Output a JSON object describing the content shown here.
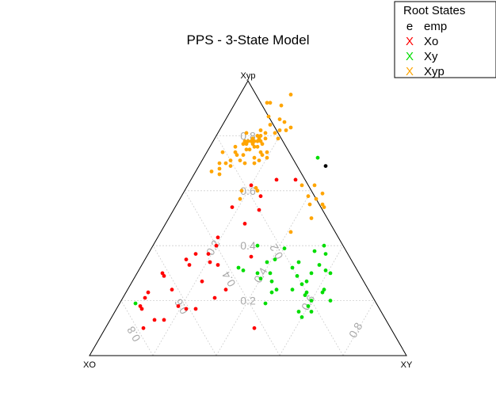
{
  "chart_data": {
    "type": "scatter",
    "subtype": "ternary",
    "title": "PPS - 3-State Model",
    "vertices": {
      "left": "XO",
      "top": "Xyp",
      "right": "XY"
    },
    "ticks": {
      "top_axis": [
        "0.2",
        "0.4",
        "0.6",
        "0.8"
      ],
      "left_axis": [
        "0.2",
        "0.4",
        "0.6",
        "0.8"
      ],
      "right_axis": [
        "0.2",
        "0.4",
        "0.6",
        "0.8"
      ]
    },
    "grid": true,
    "legend": {
      "title": "Root States",
      "placement": "top-right",
      "entries": [
        {
          "symbol": "e",
          "label": "emp",
          "color": "#000000"
        },
        {
          "symbol": "X",
          "label": "Xo",
          "color": "#ff0000"
        },
        {
          "symbol": "X",
          "label": "Xy",
          "color": "#00dd00"
        },
        {
          "symbol": "X",
          "label": "Xyp",
          "color": "#ffa500"
        }
      ]
    },
    "series": [
      {
        "name": "emp",
        "color": "#000000",
        "points": [
          [
            0.4,
            0.69
          ]
        ]
      },
      {
        "name": "Xo",
        "color": "#ff0000",
        "points": [
          [
            0.27,
            0.64
          ],
          [
            0.33,
            0.64
          ],
          [
            0.2,
            0.62
          ],
          [
            0.25,
            0.58
          ],
          [
            0.18,
            0.54
          ],
          [
            0.27,
            0.53
          ],
          [
            0.25,
            0.48
          ],
          [
            0.19,
            0.43
          ],
          [
            0.15,
            0.37
          ],
          [
            0.13,
            0.35
          ],
          [
            0.19,
            0.37
          ],
          [
            0.15,
            0.33
          ],
          [
            0.08,
            0.3
          ],
          [
            0.09,
            0.29
          ],
          [
            0.21,
            0.34
          ],
          [
            0.24,
            0.33
          ],
          [
            0.14,
            0.24
          ],
          [
            0.22,
            0.27
          ],
          [
            0.31,
            0.24
          ],
          [
            0.29,
            0.21
          ],
          [
            0.19,
            0.18
          ],
          [
            0.07,
            0.21
          ],
          [
            0.07,
            0.23
          ],
          [
            0.25,
            0.17
          ],
          [
            0.22,
            0.17
          ],
          [
            0.17,
            0.13
          ],
          [
            0.08,
            0.17
          ],
          [
            0.07,
            0.18
          ],
          [
            0.12,
            0.1
          ],
          [
            0.14,
            0.13
          ],
          [
            0.47,
            0.1
          ],
          [
            0.2,
            0.4
          ],
          [
            0.33,
            0.36
          ]
        ]
      },
      {
        "name": "Xy",
        "color": "#00dd00",
        "points": [
          [
            0.33,
            0.4
          ],
          [
            0.42,
            0.39
          ],
          [
            0.41,
            0.35
          ],
          [
            0.39,
            0.34
          ],
          [
            0.33,
            0.31
          ],
          [
            0.38,
            0.3
          ],
          [
            0.42,
            0.3
          ],
          [
            0.52,
            0.38
          ],
          [
            0.56,
            0.37
          ],
          [
            0.61,
            0.3
          ],
          [
            0.59,
            0.31
          ],
          [
            0.55,
            0.3
          ],
          [
            0.55,
            0.27
          ],
          [
            0.51,
            0.29
          ],
          [
            0.57,
            0.23
          ],
          [
            0.62,
            0.23
          ],
          [
            0.66,
            0.2
          ],
          [
            0.6,
            0.2
          ],
          [
            0.6,
            0.18
          ],
          [
            0.58,
            0.16
          ],
          [
            0.62,
            0.16
          ],
          [
            0.46,
            0.23
          ],
          [
            0.46,
            0.19
          ],
          [
            0.54,
            0.26
          ],
          [
            0.48,
            0.32
          ],
          [
            0.36,
            0.72
          ],
          [
            0.31,
            0.32
          ],
          [
            0.49,
            0.34
          ],
          [
            0.52,
            0.24
          ],
          [
            0.44,
            0.27
          ],
          [
            0.4,
            0.28
          ],
          [
            0.47,
            0.24
          ],
          [
            0.56,
            0.33
          ],
          [
            0.62,
            0.24
          ],
          [
            0.6,
            0.14
          ],
          [
            0.05,
            0.19
          ],
          [
            0.54,
            0.4
          ],
          [
            0.57,
            0.22
          ]
        ]
      },
      {
        "name": "Xyp",
        "color": "#ffa500",
        "points": [
          [
            0.13,
            0.87
          ],
          [
            0.13,
            0.82
          ],
          [
            0.14,
            0.8
          ],
          [
            0.15,
            0.84
          ],
          [
            0.1,
            0.78
          ],
          [
            0.09,
            0.74
          ],
          [
            0.08,
            0.76
          ],
          [
            0.09,
            0.81
          ],
          [
            0.12,
            0.75
          ],
          [
            0.13,
            0.77
          ],
          [
            0.11,
            0.78
          ],
          [
            0.14,
            0.76
          ],
          [
            0.1,
            0.77
          ],
          [
            0.12,
            0.79
          ],
          [
            0.15,
            0.81
          ],
          [
            0.16,
            0.77
          ],
          [
            0.15,
            0.78
          ],
          [
            0.14,
            0.79
          ],
          [
            0.13,
            0.8
          ],
          [
            0.12,
            0.78
          ],
          [
            0.11,
            0.77
          ],
          [
            0.13,
            0.78
          ],
          [
            0.14,
            0.78
          ],
          [
            0.15,
            0.76
          ],
          [
            0.16,
            0.79
          ],
          [
            0.17,
            0.74
          ],
          [
            0.18,
            0.73
          ],
          [
            0.17,
            0.7
          ],
          [
            0.16,
            0.72
          ],
          [
            0.18,
            0.71
          ],
          [
            0.19,
            0.74
          ],
          [
            0.2,
            0.72
          ],
          [
            0.12,
            0.73
          ],
          [
            0.1,
            0.73
          ],
          [
            0.09,
            0.71
          ],
          [
            0.08,
            0.7
          ],
          [
            0.06,
            0.7
          ],
          [
            0.05,
            0.67
          ],
          [
            0.08,
            0.66
          ],
          [
            0.16,
            0.95
          ],
          [
            0.11,
            0.92
          ],
          [
            0.1,
            0.92
          ],
          [
            0.15,
            0.91
          ],
          [
            0.18,
            0.81
          ],
          [
            0.21,
            0.82
          ],
          [
            0.19,
            0.82
          ],
          [
            0.22,
            0.83
          ],
          [
            0.2,
            0.79
          ],
          [
            0.17,
            0.86
          ],
          [
            0.19,
            0.85
          ],
          [
            0.14,
            0.7
          ],
          [
            0.22,
            0.61
          ],
          [
            0.36,
            0.62
          ],
          [
            0.4,
            0.62
          ],
          [
            0.44,
            0.59
          ],
          [
            0.43,
            0.57
          ],
          [
            0.46,
            0.55
          ],
          [
            0.42,
            0.55
          ],
          [
            0.19,
            0.57
          ],
          [
            0.23,
            0.6
          ],
          [
            0.45,
            0.5
          ],
          [
            0.41,
            0.45
          ],
          [
            0.18,
            0.6
          ],
          [
            0.47,
            0.54
          ],
          [
            0.4,
            0.58
          ],
          [
            0.13,
            0.75
          ],
          [
            0.1,
            0.69
          ],
          [
            0.05,
            0.74
          ],
          [
            0.12,
            0.71
          ],
          [
            0.07,
            0.68
          ]
        ]
      }
    ]
  }
}
